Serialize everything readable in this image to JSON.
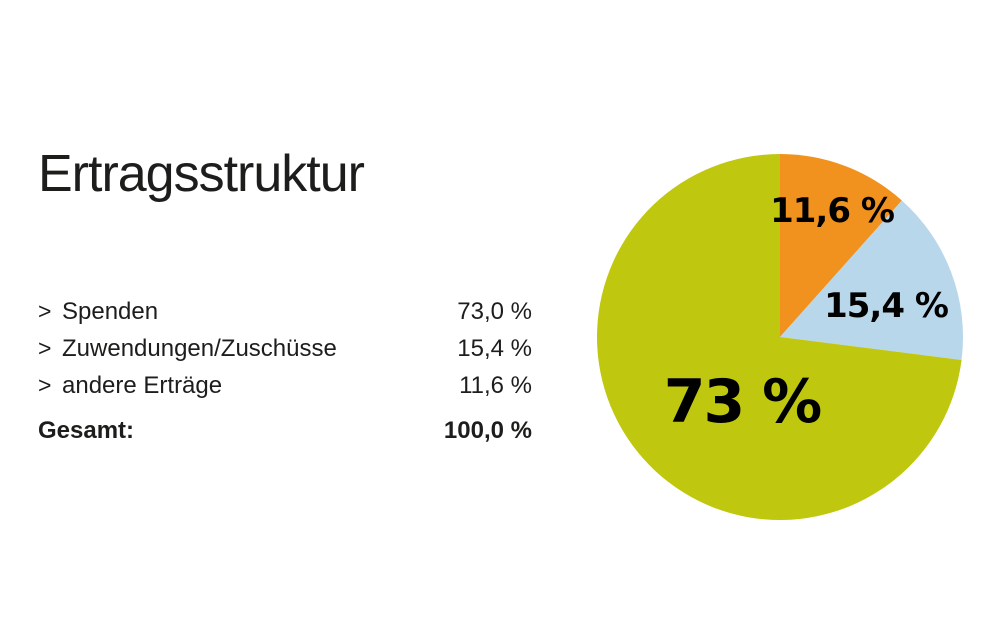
{
  "title": "Ertragsstruktur",
  "legend": {
    "bullet": ">",
    "items": [
      {
        "label": "Spenden",
        "value": "73,0 %"
      },
      {
        "label": "Zuwendungen/Zuschüsse",
        "value": "15,4 %"
      },
      {
        "label": "andere Erträge",
        "value": "11,6 %"
      }
    ],
    "total": {
      "label": "Gesamt:",
      "value": "100,0 %"
    }
  },
  "chart_data": {
    "type": "pie",
    "title": "Ertragsstruktur",
    "start_angle_deg": 0,
    "direction": "clockwise",
    "legend_position": "left",
    "slices": [
      {
        "label": "andere Erträge",
        "value": 11.6,
        "display_label": "11,6 %",
        "color": "#f1911e"
      },
      {
        "label": "Zuwendungen/Zuschüsse",
        "value": 15.4,
        "display_label": "15,4 %",
        "color": "#b9d7ea"
      },
      {
        "label": "Spenden",
        "value": 73.0,
        "display_label": "73 %",
        "color": "#bfc70e"
      }
    ],
    "colors": {
      "spenden_green": "#bfc70e",
      "zuwendungen_blue": "#b9d7ea",
      "andere_orange": "#f1911e",
      "text_black": "#1d1d1b",
      "background": "#ffffff"
    }
  }
}
